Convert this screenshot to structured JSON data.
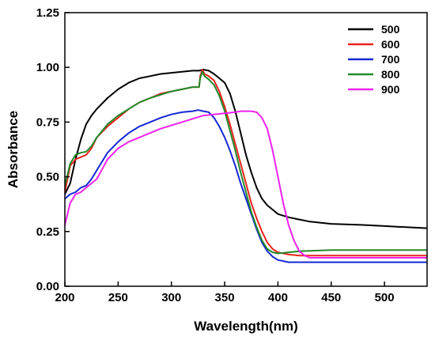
{
  "chart_data": {
    "type": "line",
    "xlabel": "Wavelength(nm)",
    "ylabel": "Absorbance",
    "xlim": [
      200,
      540
    ],
    "ylim": [
      0,
      1.25
    ],
    "xticks": [
      "200",
      "250",
      "300",
      "350",
      "400",
      "450",
      "500"
    ],
    "yticks": [
      "0.00",
      "0.25",
      "0.50",
      "0.75",
      "1.00",
      "1.25"
    ],
    "grid": false,
    "legend_position": "top-right",
    "series": [
      {
        "name": "500",
        "color": "#000000",
        "points": [
          [
            200,
            0.42
          ],
          [
            205,
            0.47
          ],
          [
            210,
            0.58
          ],
          [
            215,
            0.67
          ],
          [
            220,
            0.74
          ],
          [
            225,
            0.78
          ],
          [
            230,
            0.81
          ],
          [
            240,
            0.86
          ],
          [
            250,
            0.9
          ],
          [
            260,
            0.93
          ],
          [
            270,
            0.95
          ],
          [
            280,
            0.96
          ],
          [
            290,
            0.97
          ],
          [
            300,
            0.975
          ],
          [
            310,
            0.98
          ],
          [
            320,
            0.985
          ],
          [
            326,
            0.985
          ],
          [
            330,
            0.99
          ],
          [
            335,
            0.985
          ],
          [
            340,
            0.97
          ],
          [
            345,
            0.95
          ],
          [
            350,
            0.93
          ],
          [
            355,
            0.88
          ],
          [
            360,
            0.8
          ],
          [
            365,
            0.7
          ],
          [
            370,
            0.6
          ],
          [
            375,
            0.52
          ],
          [
            380,
            0.45
          ],
          [
            385,
            0.4
          ],
          [
            390,
            0.37
          ],
          [
            395,
            0.35
          ],
          [
            400,
            0.33
          ],
          [
            410,
            0.315
          ],
          [
            420,
            0.305
          ],
          [
            430,
            0.295
          ],
          [
            450,
            0.285
          ],
          [
            480,
            0.28
          ],
          [
            500,
            0.275
          ],
          [
            520,
            0.27
          ],
          [
            540,
            0.265
          ]
        ]
      },
      {
        "name": "600",
        "color": "#e8231e",
        "points": [
          [
            200,
            0.43
          ],
          [
            205,
            0.55
          ],
          [
            210,
            0.58
          ],
          [
            215,
            0.59
          ],
          [
            220,
            0.6
          ],
          [
            225,
            0.63
          ],
          [
            230,
            0.68
          ],
          [
            240,
            0.73
          ],
          [
            250,
            0.77
          ],
          [
            260,
            0.81
          ],
          [
            270,
            0.84
          ],
          [
            280,
            0.86
          ],
          [
            290,
            0.88
          ],
          [
            300,
            0.89
          ],
          [
            310,
            0.9
          ],
          [
            320,
            0.91
          ],
          [
            326,
            0.91
          ],
          [
            327,
            0.96
          ],
          [
            329,
            0.99
          ],
          [
            331,
            0.97
          ],
          [
            335,
            0.96
          ],
          [
            340,
            0.94
          ],
          [
            345,
            0.89
          ],
          [
            350,
            0.82
          ],
          [
            355,
            0.74
          ],
          [
            360,
            0.65
          ],
          [
            365,
            0.56
          ],
          [
            370,
            0.47
          ],
          [
            375,
            0.38
          ],
          [
            380,
            0.31
          ],
          [
            385,
            0.25
          ],
          [
            390,
            0.2
          ],
          [
            395,
            0.17
          ],
          [
            400,
            0.155
          ],
          [
            410,
            0.145
          ],
          [
            420,
            0.14
          ],
          [
            450,
            0.14
          ],
          [
            480,
            0.14
          ],
          [
            500,
            0.14
          ],
          [
            540,
            0.14
          ]
        ]
      },
      {
        "name": "700",
        "color": "#1528d4",
        "points": [
          [
            200,
            0.4
          ],
          [
            205,
            0.42
          ],
          [
            210,
            0.43
          ],
          [
            215,
            0.45
          ],
          [
            220,
            0.46
          ],
          [
            225,
            0.49
          ],
          [
            230,
            0.53
          ],
          [
            240,
            0.61
          ],
          [
            250,
            0.66
          ],
          [
            260,
            0.7
          ],
          [
            270,
            0.73
          ],
          [
            280,
            0.75
          ],
          [
            290,
            0.77
          ],
          [
            300,
            0.785
          ],
          [
            310,
            0.795
          ],
          [
            320,
            0.8
          ],
          [
            325,
            0.805
          ],
          [
            330,
            0.8
          ],
          [
            335,
            0.795
          ],
          [
            340,
            0.77
          ],
          [
            345,
            0.73
          ],
          [
            350,
            0.68
          ],
          [
            355,
            0.62
          ],
          [
            360,
            0.55
          ],
          [
            365,
            0.47
          ],
          [
            370,
            0.4
          ],
          [
            375,
            0.33
          ],
          [
            380,
            0.26
          ],
          [
            385,
            0.2
          ],
          [
            390,
            0.16
          ],
          [
            395,
            0.135
          ],
          [
            400,
            0.12
          ],
          [
            410,
            0.11
          ],
          [
            420,
            0.11
          ],
          [
            450,
            0.11
          ],
          [
            480,
            0.11
          ],
          [
            500,
            0.11
          ],
          [
            540,
            0.11
          ]
        ]
      },
      {
        "name": "800",
        "color": "#22892a",
        "points": [
          [
            200,
            0.46
          ],
          [
            205,
            0.56
          ],
          [
            210,
            0.6
          ],
          [
            215,
            0.61
          ],
          [
            220,
            0.615
          ],
          [
            225,
            0.64
          ],
          [
            230,
            0.68
          ],
          [
            240,
            0.74
          ],
          [
            250,
            0.78
          ],
          [
            260,
            0.81
          ],
          [
            270,
            0.84
          ],
          [
            280,
            0.86
          ],
          [
            290,
            0.875
          ],
          [
            300,
            0.89
          ],
          [
            310,
            0.9
          ],
          [
            320,
            0.91
          ],
          [
            326,
            0.91
          ],
          [
            327,
            0.95
          ],
          [
            329,
            0.98
          ],
          [
            331,
            0.96
          ],
          [
            335,
            0.945
          ],
          [
            340,
            0.92
          ],
          [
            345,
            0.87
          ],
          [
            350,
            0.8
          ],
          [
            355,
            0.71
          ],
          [
            360,
            0.62
          ],
          [
            365,
            0.52
          ],
          [
            370,
            0.43
          ],
          [
            375,
            0.34
          ],
          [
            380,
            0.27
          ],
          [
            385,
            0.21
          ],
          [
            390,
            0.17
          ],
          [
            395,
            0.155
          ],
          [
            400,
            0.15
          ],
          [
            410,
            0.155
          ],
          [
            420,
            0.16
          ],
          [
            450,
            0.165
          ],
          [
            480,
            0.165
          ],
          [
            500,
            0.165
          ],
          [
            540,
            0.165
          ]
        ]
      },
      {
        "name": "900",
        "color": "#ee22ee",
        "points": [
          [
            200,
            0.28
          ],
          [
            205,
            0.38
          ],
          [
            210,
            0.42
          ],
          [
            215,
            0.43
          ],
          [
            220,
            0.45
          ],
          [
            225,
            0.47
          ],
          [
            230,
            0.49
          ],
          [
            240,
            0.58
          ],
          [
            250,
            0.63
          ],
          [
            260,
            0.66
          ],
          [
            270,
            0.68
          ],
          [
            280,
            0.7
          ],
          [
            290,
            0.72
          ],
          [
            300,
            0.735
          ],
          [
            310,
            0.75
          ],
          [
            320,
            0.765
          ],
          [
            330,
            0.78
          ],
          [
            340,
            0.785
          ],
          [
            350,
            0.79
          ],
          [
            360,
            0.795
          ],
          [
            365,
            0.8
          ],
          [
            370,
            0.8
          ],
          [
            375,
            0.8
          ],
          [
            380,
            0.795
          ],
          [
            385,
            0.77
          ],
          [
            390,
            0.72
          ],
          [
            395,
            0.62
          ],
          [
            400,
            0.5
          ],
          [
            405,
            0.38
          ],
          [
            410,
            0.28
          ],
          [
            415,
            0.21
          ],
          [
            420,
            0.16
          ],
          [
            425,
            0.14
          ],
          [
            430,
            0.13
          ],
          [
            450,
            0.13
          ],
          [
            480,
            0.13
          ],
          [
            500,
            0.13
          ],
          [
            540,
            0.13
          ]
        ]
      }
    ]
  }
}
